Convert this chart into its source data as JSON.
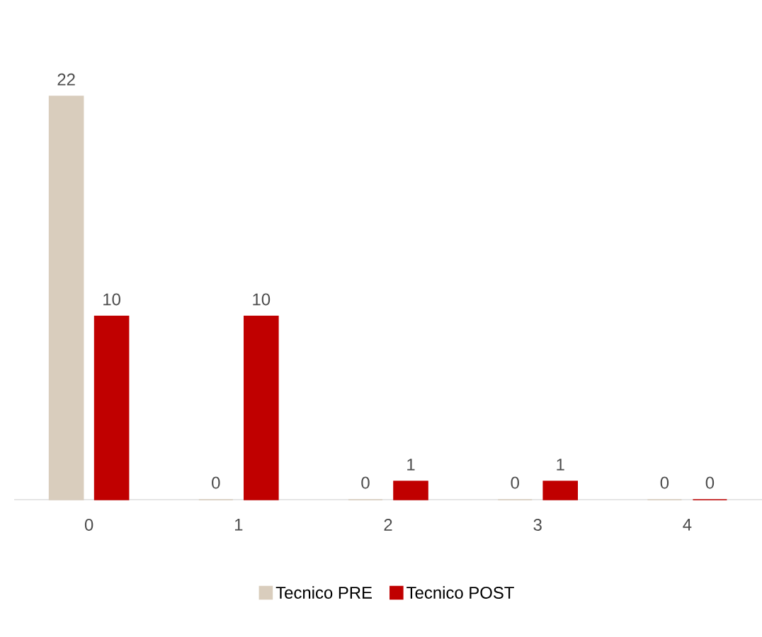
{
  "chart_data": {
    "type": "bar",
    "categories": [
      "0",
      "1",
      "2",
      "3",
      "4"
    ],
    "series": [
      {
        "name": "Tecnico PRE",
        "color": "#d9cdbd",
        "values": [
          22,
          0,
          0,
          0,
          0
        ]
      },
      {
        "name": "Tecnico POST",
        "color": "#c00000",
        "values": [
          10,
          10,
          1,
          1,
          0
        ]
      }
    ],
    "ylim": [
      0,
      22
    ],
    "data_labels": true,
    "legend": "bottom"
  }
}
